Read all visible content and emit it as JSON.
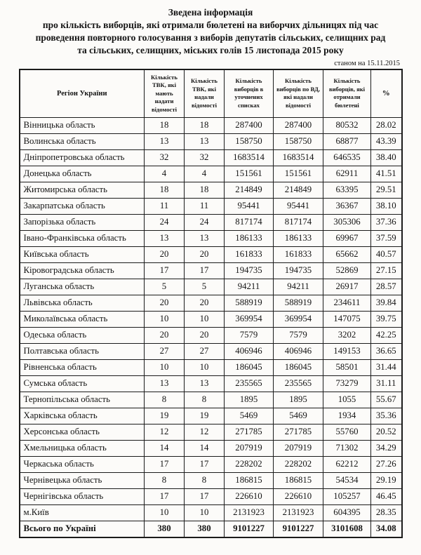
{
  "title": {
    "line1": "Зведена інформація",
    "line2": "про кількість виборців, які отримали бюлетені на виборчих дільницях під час",
    "line3": "проведення повторного голосування з виборів депутатів сільських, селищних рад",
    "line4": "та сільських, селищних, міських голів 15 листопада 2015 року"
  },
  "timestamp": "станом на 15.11.2015",
  "table": {
    "headers": [
      "Регіон України",
      "Кількість ТВК, які мають надати відомості",
      "Кількість ТВК, які надали відомості",
      "Кількість виборців в уточнених списках",
      "Кількість виборців по ВД, які надали відомості",
      "Кількість виборців, які отримали бюлетені",
      "%"
    ],
    "rows": [
      [
        "Вінницька область",
        "18",
        "18",
        "287400",
        "287400",
        "80532",
        "28.02"
      ],
      [
        "Волинська область",
        "13",
        "13",
        "158750",
        "158750",
        "68877",
        "43.39"
      ],
      [
        "Дніпропетровська область",
        "32",
        "32",
        "1683514",
        "1683514",
        "646535",
        "38.40"
      ],
      [
        "Донецька область",
        "4",
        "4",
        "151561",
        "151561",
        "62911",
        "41.51"
      ],
      [
        "Житомирська область",
        "18",
        "18",
        "214849",
        "214849",
        "63395",
        "29.51"
      ],
      [
        "Закарпатська область",
        "11",
        "11",
        "95441",
        "95441",
        "36367",
        "38.10"
      ],
      [
        "Запорізька область",
        "24",
        "24",
        "817174",
        "817174",
        "305306",
        "37.36"
      ],
      [
        "Івано-Франківська область",
        "13",
        "13",
        "186133",
        "186133",
        "69967",
        "37.59"
      ],
      [
        "Київська область",
        "20",
        "20",
        "161833",
        "161833",
        "65662",
        "40.57"
      ],
      [
        "Кіровоградська область",
        "17",
        "17",
        "194735",
        "194735",
        "52869",
        "27.15"
      ],
      [
        "Луганська область",
        "5",
        "5",
        "94211",
        "94211",
        "26917",
        "28.57"
      ],
      [
        "Львівська область",
        "20",
        "20",
        "588919",
        "588919",
        "234611",
        "39.84"
      ],
      [
        "Миколаївська область",
        "10",
        "10",
        "369954",
        "369954",
        "147075",
        "39.75"
      ],
      [
        "Одеська область",
        "20",
        "20",
        "7579",
        "7579",
        "3202",
        "42.25"
      ],
      [
        "Полтавська область",
        "27",
        "27",
        "406946",
        "406946",
        "149153",
        "36.65"
      ],
      [
        "Рівненська область",
        "10",
        "10",
        "186045",
        "186045",
        "58501",
        "31.44"
      ],
      [
        "Сумська область",
        "13",
        "13",
        "235565",
        "235565",
        "73279",
        "31.11"
      ],
      [
        "Тернопільська область",
        "8",
        "8",
        "1895",
        "1895",
        "1055",
        "55.67"
      ],
      [
        "Харківська область",
        "19",
        "19",
        "5469",
        "5469",
        "1934",
        "35.36"
      ],
      [
        "Херсонська область",
        "12",
        "12",
        "271785",
        "271785",
        "55760",
        "20.52"
      ],
      [
        "Хмельницька область",
        "14",
        "14",
        "207919",
        "207919",
        "71302",
        "34.29"
      ],
      [
        "Черкаська область",
        "17",
        "17",
        "228202",
        "228202",
        "62212",
        "27.26"
      ],
      [
        "Чернівецька область",
        "8",
        "8",
        "186815",
        "186815",
        "54534",
        "29.19"
      ],
      [
        "Чернігівська область",
        "17",
        "17",
        "226610",
        "226610",
        "105257",
        "46.45"
      ],
      [
        "м.Київ",
        "10",
        "10",
        "2131923",
        "2131923",
        "604395",
        "28.35"
      ]
    ],
    "total": [
      "Всього по Україні",
      "380",
      "380",
      "9101227",
      "9101227",
      "3101608",
      "34.08"
    ]
  }
}
